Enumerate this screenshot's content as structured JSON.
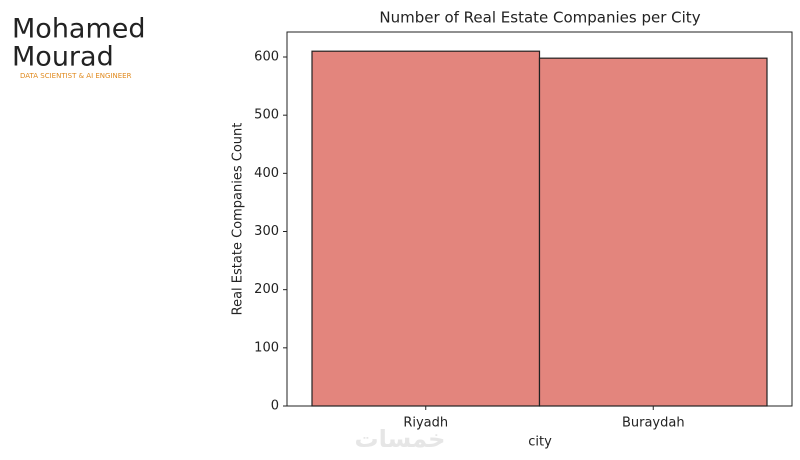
{
  "chart_data": {
    "type": "bar",
    "title": "Number of Real Estate Companies per City",
    "x_label": "city",
    "y_label": "Real Estate Companies Count",
    "categories": [
      "Riyadh",
      "Buraydah"
    ],
    "values": [
      610,
      598
    ],
    "color": "#e3857d",
    "edgecolor": "#222222",
    "ylim": [
      0,
      643
    ],
    "yticks": [
      0,
      100,
      200,
      300,
      400,
      500,
      600
    ],
    "grid": false
  },
  "logo": {
    "line1": "Mohamed",
    "line2": "Mourad",
    "tagline": "DATA SCIENTIST & AI ENGINEER"
  },
  "watermark": "خمسات"
}
